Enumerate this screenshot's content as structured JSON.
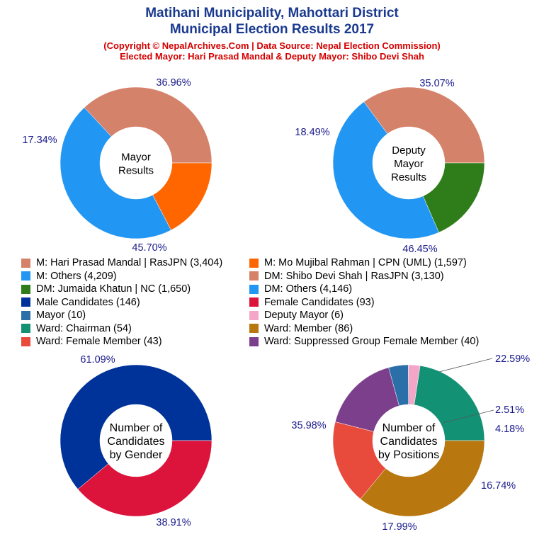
{
  "header": {
    "title_line1": "Matihani Municipality, Mahottari District",
    "title_line2": "Municipal Election Results 2017",
    "subtitle_line1": "(Copyright © NepalArchives.Com | Data Source: Nepal Election Commission)",
    "subtitle_line2": "Elected Mayor: Hari Prasad Mandal & Deputy Mayor: Shibo Devi Shah"
  },
  "chart_data": [
    {
      "type": "pie",
      "center_label": [
        "Mayor",
        "Results"
      ],
      "slices": [
        {
          "label": "M: Hari Prasad Mandal | RasJPN (3,404)",
          "value": 3404,
          "percent": "36.96%",
          "color": "#d4826a"
        },
        {
          "label": "M: Others (4,209)",
          "value": 4209,
          "percent": "45.70%",
          "color": "#2196f3"
        },
        {
          "label": "M: Mo Mujibal Rahman | CPN (UML) (1,597)",
          "value": 1597,
          "percent": "17.34%",
          "color": "#ff6600"
        }
      ]
    },
    {
      "type": "pie",
      "center_label": [
        "Deputy",
        "Mayor",
        "Results"
      ],
      "slices": [
        {
          "label": "DM: Shibo Devi Shah | RasJPN (3,130)",
          "value": 3130,
          "percent": "35.07%",
          "color": "#d4826a"
        },
        {
          "label": "DM: Others (4,146)",
          "value": 4146,
          "percent": "46.45%",
          "color": "#2196f3"
        },
        {
          "label": "DM: Jumaida Khatun | NC (1,650)",
          "value": 1650,
          "percent": "18.49%",
          "color": "#2e7d1a"
        }
      ]
    },
    {
      "type": "pie",
      "center_label": [
        "Number of",
        "Candidates",
        "by Gender"
      ],
      "slices": [
        {
          "label": "Male Candidates (146)",
          "value": 146,
          "percent": "61.09%",
          "color": "#003399"
        },
        {
          "label": "Female Candidates (93)",
          "value": 93,
          "percent": "38.91%",
          "color": "#dc143c"
        }
      ]
    },
    {
      "type": "pie",
      "center_label": [
        "Number of",
        "Candidates",
        "by Positions"
      ],
      "slices": [
        {
          "label": "Ward: Chairman (54)",
          "value": 54,
          "percent": "22.59%",
          "color": "#139175"
        },
        {
          "label": "Deputy Mayor (6)",
          "value": 6,
          "percent": "2.51%",
          "color": "#f4a6c8"
        },
        {
          "label": "Mayor (10)",
          "value": 10,
          "percent": "4.18%",
          "color": "#2a6fa8"
        },
        {
          "label": "Ward: Suppressed Group Female Member (40)",
          "value": 40,
          "percent": "16.74%",
          "color": "#7b3f8c"
        },
        {
          "label": "Ward: Female Member (43)",
          "value": 43,
          "percent": "17.99%",
          "color": "#e84b3c"
        },
        {
          "label": "Ward: Member (86)",
          "value": 86,
          "percent": "35.98%",
          "color": "#b8770f"
        }
      ]
    }
  ],
  "legend": [
    {
      "label": "M: Hari Prasad Mandal | RasJPN (3,404)",
      "color": "#d4826a"
    },
    {
      "label": "M: Mo Mujibal Rahman | CPN (UML) (1,597)",
      "color": "#ff6600"
    },
    {
      "label": "M: Others (4,209)",
      "color": "#2196f3"
    },
    {
      "label": "DM: Shibo Devi Shah | RasJPN (3,130)",
      "color": "#d4826a"
    },
    {
      "label": "DM: Jumaida Khatun | NC (1,650)",
      "color": "#2e7d1a"
    },
    {
      "label": "DM: Others (4,146)",
      "color": "#2196f3"
    },
    {
      "label": "Male Candidates (146)",
      "color": "#003399"
    },
    {
      "label": "Female Candidates (93)",
      "color": "#dc143c"
    },
    {
      "label": "Mayor (10)",
      "color": "#2a6fa8"
    },
    {
      "label": "Deputy Mayor (6)",
      "color": "#f4a6c8"
    },
    {
      "label": "Ward: Chairman (54)",
      "color": "#139175"
    },
    {
      "label": "Ward: Member (86)",
      "color": "#b8770f"
    },
    {
      "label": "Ward: Female Member (43)",
      "color": "#e84b3c"
    },
    {
      "label": "Ward: Suppressed Group Female Member (40)",
      "color": "#7b3f8c"
    }
  ]
}
